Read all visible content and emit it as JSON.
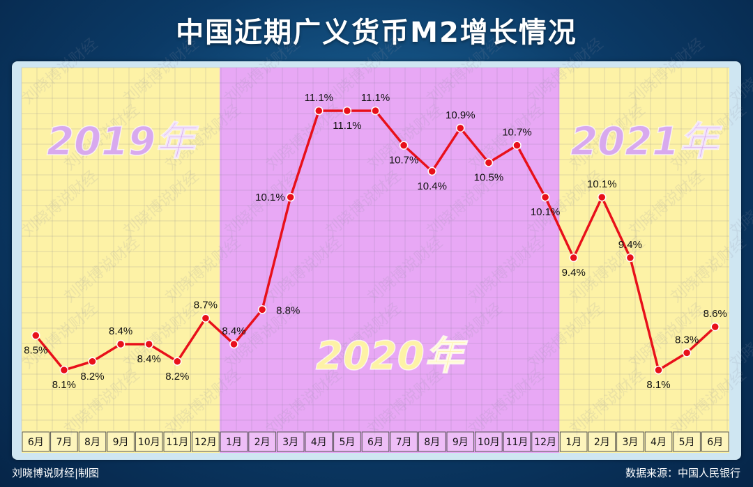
{
  "title": "中国近期广义货币M2增长情况",
  "footer": {
    "credit": "刘晓博说财经|制图",
    "source": "数据来源：中国人民银行"
  },
  "watermark": "刘晓博说财经",
  "colors": {
    "period_2019": "#fdf2a6",
    "period_2020": "#e8a8f5",
    "period_2021": "#fdf2a6",
    "line": "#e8101a",
    "label_2019_2021": "#d8a9ee",
    "label_2020": "#fdf2a6"
  },
  "chart_data": {
    "type": "line",
    "title": "中国近期广义货币M2增长情况",
    "xlabel": "",
    "ylabel": "",
    "unit": "%",
    "categories": [
      "6月",
      "7月",
      "8月",
      "9月",
      "10月",
      "11月",
      "12月",
      "1月",
      "2月",
      "3月",
      "4月",
      "5月",
      "6月",
      "7月",
      "8月",
      "9月",
      "10月",
      "11月",
      "12月",
      "1月",
      "2月",
      "3月",
      "4月",
      "5月",
      "6月"
    ],
    "values": [
      8.5,
      8.1,
      8.2,
      8.4,
      8.4,
      8.2,
      8.7,
      8.4,
      8.8,
      10.1,
      11.1,
      11.1,
      11.1,
      10.7,
      10.4,
      10.9,
      10.5,
      10.7,
      10.1,
      9.4,
      10.1,
      9.4,
      8.1,
      8.3,
      8.6
    ],
    "data_labels": [
      "8.5%",
      "8.1%",
      "8.2%",
      "8.4%",
      "8.4%",
      "8.2%",
      "8.7%",
      "8.4%",
      "8.8%",
      "10.1%",
      "11.1%",
      "11.1%",
      "11.1%",
      "10.7%",
      "10.4%",
      "10.9%",
      "10.5%",
      "10.7%",
      "10.1%",
      "9.4%",
      "10.1%",
      "9.4%",
      "8.1%",
      "8.3%",
      "8.6%"
    ],
    "label_positions": [
      "below",
      "below",
      "below",
      "above",
      "below",
      "below",
      "above",
      "above",
      "right",
      "left",
      "above",
      "below",
      "above",
      "below",
      "below",
      "above",
      "below",
      "above",
      "below",
      "below",
      "above",
      "above",
      "below",
      "above",
      "above"
    ],
    "periods": [
      {
        "label": "2019年",
        "start": 0,
        "end": 6
      },
      {
        "label": "2020年",
        "start": 7,
        "end": 18
      },
      {
        "label": "2021年",
        "start": 19,
        "end": 24
      }
    ],
    "ylim": [
      7.4,
      11.6
    ],
    "grid": true,
    "legend": "none"
  }
}
